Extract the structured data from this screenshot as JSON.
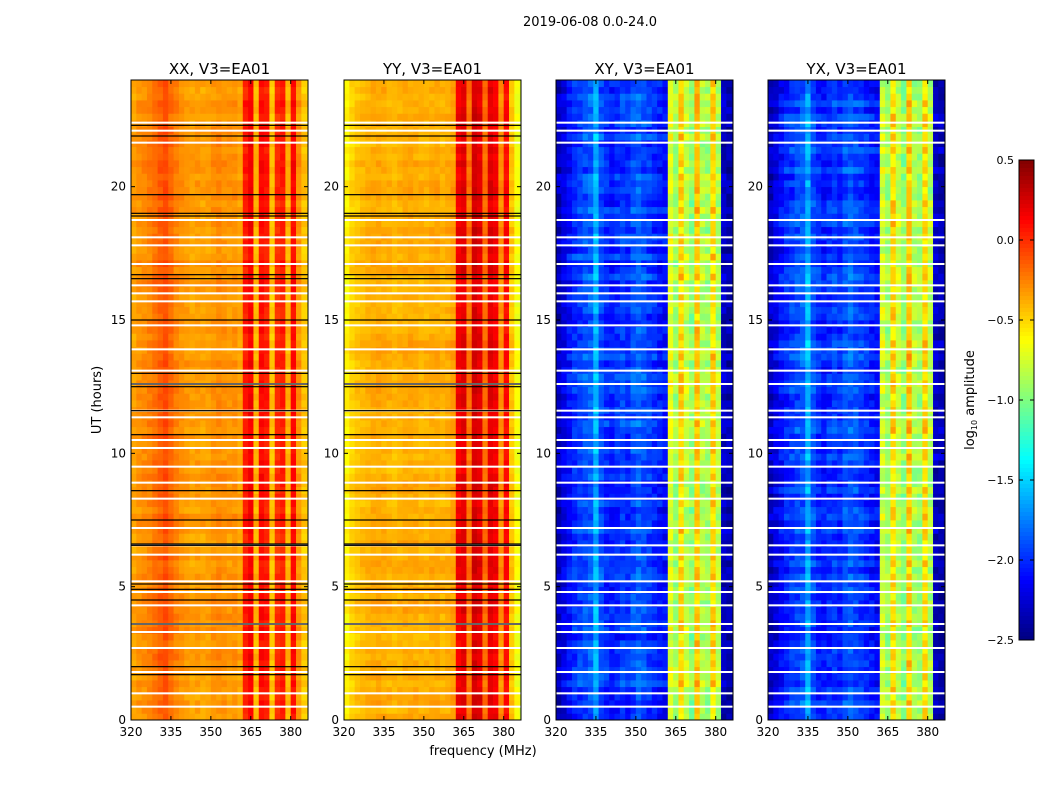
{
  "chart_data": {
    "type": "heatmap",
    "title": "2019-06-08 0.0-24.0",
    "xlabel": "frequency (MHz)",
    "ylabel": "UT (hours)",
    "xlim": [
      320,
      386.5
    ],
    "ylim": [
      0,
      24
    ],
    "xticks": [
      320,
      335,
      350,
      365,
      380
    ],
    "yticks": [
      0,
      5,
      10,
      15,
      20
    ],
    "freq_bin_MHz": 2,
    "time_bin_hours": 0.25,
    "colorbar": {
      "label_main": "log",
      "label_sub": "10",
      "label_rest": " amplitude",
      "range": [
        -2.5,
        0.5
      ],
      "ticks": [
        "0.5",
        "0.0",
        "−0.5",
        "−1.0",
        "−1.5",
        "−2.0",
        "−2.5"
      ],
      "tick_values": [
        0.5,
        0.0,
        -0.5,
        -1.0,
        -1.5,
        -2.0,
        -2.5
      ],
      "colormap": "jet"
    },
    "panels": [
      {
        "title": "XX, V3=EA01",
        "profile": [
          -0.35,
          -0.3,
          -0.28,
          -0.25,
          -0.2,
          -0.15,
          -0.1,
          -0.18,
          -0.25,
          -0.3,
          -0.32,
          -0.35,
          -0.33,
          -0.35,
          -0.34,
          -0.3,
          -0.28,
          -0.3,
          -0.32,
          -0.3,
          -0.35,
          0.05,
          0.15,
          -0.4,
          0.1,
          0.05,
          -0.45,
          0.0,
          0.05,
          -0.4,
          0.1,
          -0.3,
          -0.45,
          -0.5
        ],
        "noise": 0.08,
        "black_lines": true
      },
      {
        "title": "YY, V3=EA01",
        "profile": [
          -0.6,
          -0.5,
          -0.45,
          -0.42,
          -0.4,
          -0.38,
          -0.37,
          -0.38,
          -0.4,
          -0.42,
          -0.4,
          -0.38,
          -0.37,
          -0.38,
          -0.4,
          -0.4,
          -0.38,
          -0.37,
          -0.4,
          -0.38,
          -0.35,
          0.15,
          0.2,
          -0.2,
          0.25,
          0.2,
          -0.2,
          0.2,
          0.15,
          -0.3,
          0.1,
          -0.45,
          -0.65,
          -0.75
        ],
        "noise": 0.08,
        "black_lines": true
      },
      {
        "title": "XY, V3=EA01",
        "profile": [
          -2.3,
          -2.2,
          -2.1,
          -2.0,
          -1.95,
          -1.9,
          -1.85,
          -1.6,
          -1.9,
          -2.0,
          -2.05,
          -2.0,
          -1.95,
          -2.0,
          -1.9,
          -1.85,
          -1.9,
          -1.95,
          -2.0,
          -2.05,
          -2.1,
          -0.7,
          -0.9,
          -0.5,
          -0.8,
          -0.95,
          -0.45,
          -0.85,
          -0.9,
          -0.5,
          -0.85,
          -2.3,
          -2.35,
          -2.4
        ],
        "noise": 0.2,
        "black_lines": false
      },
      {
        "title": "YX, V3=EA01",
        "profile": [
          -2.3,
          -2.2,
          -2.1,
          -2.0,
          -1.95,
          -1.9,
          -1.85,
          -1.6,
          -1.9,
          -2.0,
          -2.05,
          -2.0,
          -1.95,
          -2.0,
          -1.9,
          -1.85,
          -1.9,
          -1.95,
          -2.0,
          -2.05,
          -2.1,
          -0.75,
          -0.9,
          -0.5,
          -0.8,
          -0.95,
          -0.45,
          -0.85,
          -0.9,
          -0.5,
          -0.85,
          -2.3,
          -2.35,
          -2.4
        ],
        "noise": 0.2,
        "black_lines": false
      }
    ],
    "flagged_hours_white": [
      22.4,
      22.1,
      21.65,
      18.75,
      18.1,
      17.8,
      17.1,
      16.3,
      16.0,
      15.7,
      14.8,
      13.9,
      13.1,
      12.6,
      11.6,
      11.35,
      10.5,
      10.2,
      9.5,
      8.9,
      8.3,
      7.2,
      6.55,
      6.2,
      5.2,
      4.8,
      4.3,
      3.6,
      3.3,
      2.7,
      1.8,
      1.0,
      0.5
    ],
    "flagged_hours_black": [
      22.3,
      21.9,
      19.7,
      19.0,
      18.9,
      16.7,
      16.55,
      15.0,
      13.0,
      12.6,
      12.5,
      11.6,
      10.7,
      8.6,
      7.5,
      6.6,
      6.55,
      5.1,
      4.9,
      4.5,
      3.6,
      2.0,
      1.7
    ]
  }
}
